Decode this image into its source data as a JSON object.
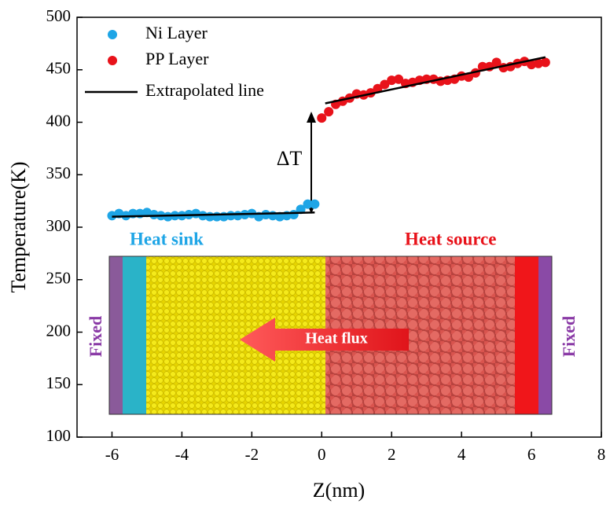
{
  "chart_data": {
    "type": "scatter",
    "xlabel": "Z(nm)",
    "ylabel": "Temperature(K)",
    "xlim": [
      -7,
      8
    ],
    "xticks": [
      -6,
      -4,
      -2,
      0,
      2,
      4,
      6,
      8
    ],
    "ylim": [
      100,
      500
    ],
    "yticks": [
      100,
      150,
      200,
      250,
      300,
      350,
      400,
      450,
      500
    ],
    "legend": "upper left",
    "series": [
      {
        "name": "Ni Layer",
        "color": "#1ea5e6",
        "x": [
          -6.0,
          -5.8,
          -5.6,
          -5.4,
          -5.2,
          -5.0,
          -4.8,
          -4.6,
          -4.4,
          -4.2,
          -4.0,
          -3.8,
          -3.6,
          -3.4,
          -3.2,
          -3.0,
          -2.8,
          -2.6,
          -2.4,
          -2.2,
          -2.0,
          -1.8,
          -1.6,
          -1.4,
          -1.2,
          -1.0,
          -0.8,
          -0.6,
          -0.4,
          -0.2
        ],
        "values": [
          311,
          313,
          311,
          313,
          313,
          314,
          312,
          311,
          310,
          311,
          311,
          312,
          313,
          311,
          310,
          310,
          310,
          311,
          311,
          312,
          313,
          310,
          312,
          311,
          310,
          311,
          312,
          317,
          322,
          322
        ]
      },
      {
        "name": "PP Layer",
        "color": "#e8121a",
        "x": [
          0.0,
          0.2,
          0.4,
          0.6,
          0.8,
          1.0,
          1.2,
          1.4,
          1.6,
          1.8,
          2.0,
          2.2,
          2.4,
          2.6,
          2.8,
          3.0,
          3.2,
          3.4,
          3.6,
          3.8,
          4.0,
          4.2,
          4.4,
          4.6,
          4.8,
          5.0,
          5.2,
          5.4,
          5.6,
          5.8,
          6.0,
          6.2,
          6.4
        ],
        "values": [
          404,
          410,
          417,
          420,
          423,
          427,
          426,
          428,
          432,
          436,
          440,
          441,
          437,
          438,
          440,
          441,
          441,
          439,
          440,
          441,
          444,
          443,
          447,
          453,
          453,
          457,
          452,
          453,
          456,
          458,
          455,
          456,
          457
        ]
      }
    ],
    "lines": [
      {
        "name": "Extrapolated line",
        "color": "#000000",
        "x": [
          -6.0,
          -0.2
        ],
        "y": [
          310,
          314
        ]
      },
      {
        "color": "#000000",
        "x": [
          0.1,
          6.4
        ],
        "y": [
          418,
          462
        ]
      }
    ],
    "annotations": [
      "ΔT",
      "Heat sink",
      "Heat source",
      "Heat flux",
      "Fixed",
      "Fixed"
    ]
  }
}
